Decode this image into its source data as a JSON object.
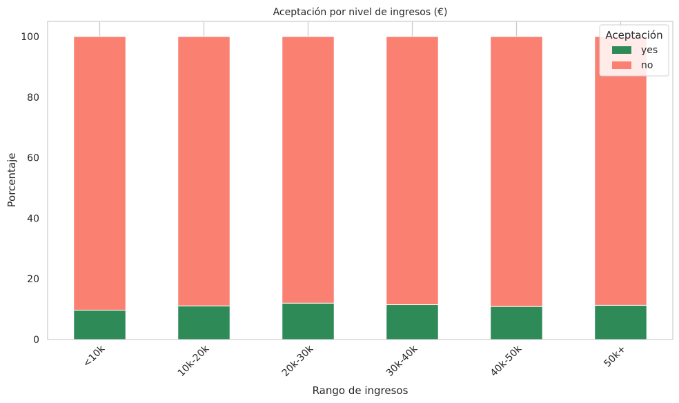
{
  "chart_data": {
    "type": "bar",
    "stacked": true,
    "title": "Aceptación por nivel de ingresos (€)",
    "xlabel": "Rango de ingresos",
    "ylabel": "Porcentaje",
    "categories": [
      "<10k",
      "10k-20k",
      "20k-30k",
      "30k-40k",
      "40k-50k",
      "50k+"
    ],
    "series": [
      {
        "name": "yes",
        "color": "#2e8b57",
        "values": [
          9.7,
          11.1,
          12.0,
          11.5,
          10.9,
          11.3
        ]
      },
      {
        "name": "no",
        "color": "#fa8072",
        "values": [
          90.3,
          88.9,
          88.0,
          88.5,
          89.1,
          88.7
        ]
      }
    ],
    "ylim": [
      0,
      105
    ],
    "yticks": [
      0,
      20,
      40,
      60,
      80,
      100
    ],
    "grid": true,
    "legend": {
      "title": "Aceptación",
      "placement": "top-right"
    }
  }
}
